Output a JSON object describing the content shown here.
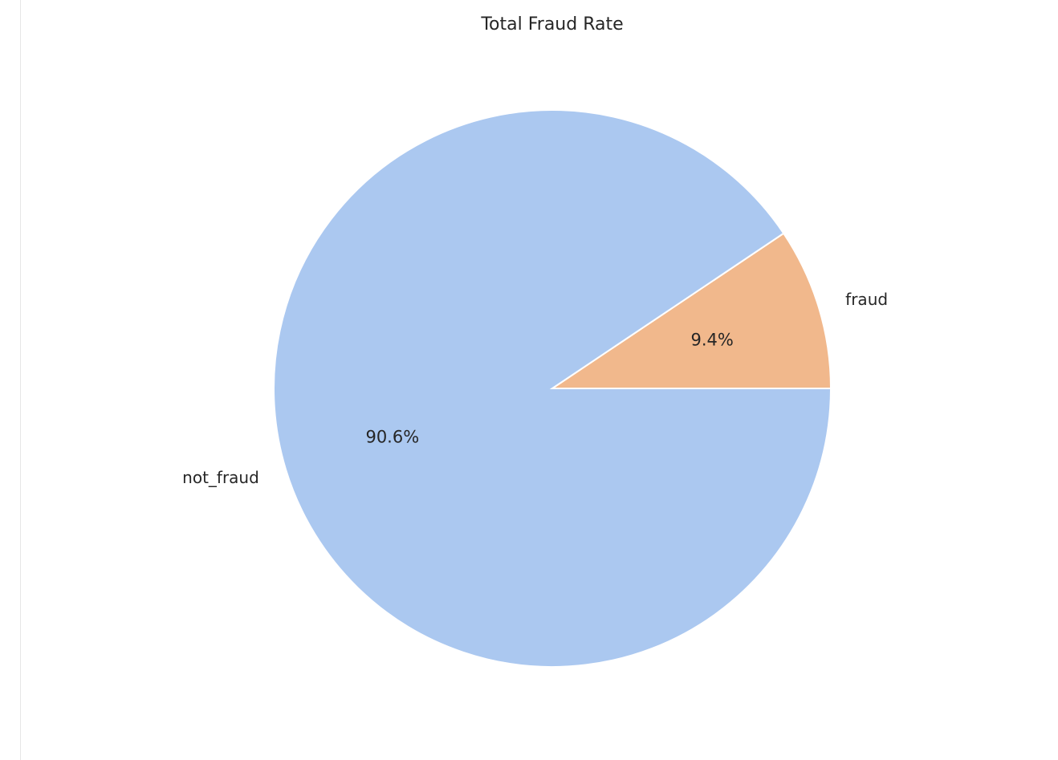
{
  "chart_data": {
    "type": "pie",
    "title": "Total Fraud Rate",
    "slices": [
      {
        "label": "fraud",
        "value": 9.4,
        "pct_label": "9.4%",
        "color": "#f1b88c"
      },
      {
        "label": "not_fraud",
        "value": 90.6,
        "pct_label": "90.6%",
        "color": "#abc8f0"
      }
    ],
    "edge_color": "#ffffff"
  }
}
